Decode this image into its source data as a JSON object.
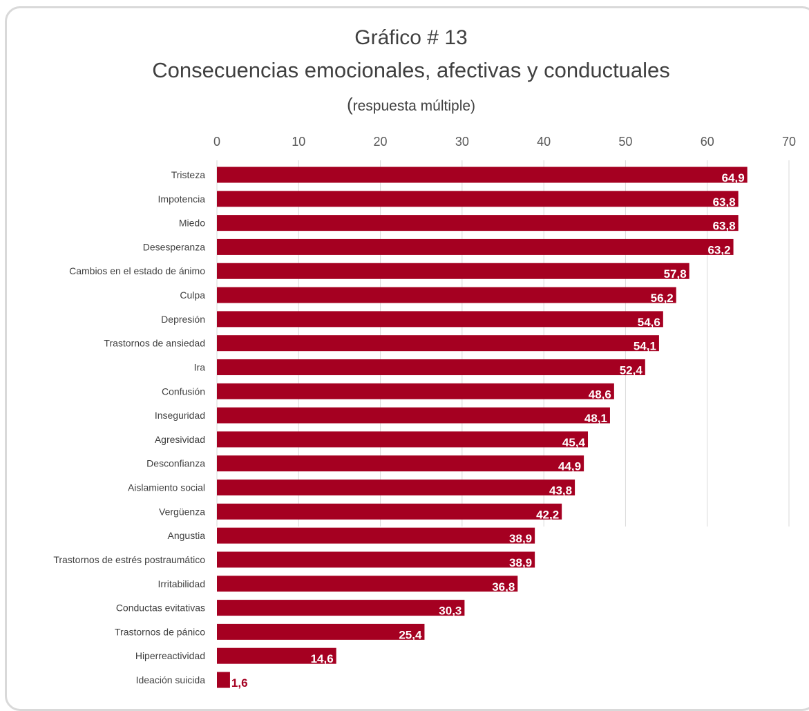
{
  "chart_data": {
    "type": "bar",
    "orientation": "horizontal",
    "title": "Gráfico # 13",
    "subtitle": "Consecuencias emocionales, afectivas y conductuales",
    "subtitle_note_paren": "(",
    "subtitle_note_text": "respuesta múltiple)",
    "xlim": [
      0,
      70
    ],
    "xticks": [
      "0",
      "10",
      "20",
      "30",
      "40",
      "50",
      "60",
      "70"
    ],
    "grid": true,
    "bar_color": "#a50021",
    "label_color_inside": "#ffffff",
    "label_color_outside": "#a50021",
    "categories": [
      "Tristeza",
      "Impotencia",
      "Miedo",
      "Desesperanza",
      "Cambios en el estado de ánimo",
      "Culpa",
      "Depresión",
      "Trastornos de ansiedad",
      "Ira",
      "Confusión",
      "Inseguridad",
      "Agresividad",
      "Desconfianza",
      "Aislamiento social",
      "Vergüenza",
      "Angustia",
      "Trastornos de estrés postraumático",
      "Irritabilidad",
      "Conductas evitativas",
      "Trastornos de pánico",
      "Hiperreactividad",
      "Ideación suicida"
    ],
    "values": [
      64.9,
      63.8,
      63.8,
      63.2,
      57.8,
      56.2,
      54.6,
      54.1,
      52.4,
      48.6,
      48.1,
      45.4,
      44.9,
      43.8,
      42.2,
      38.9,
      38.9,
      36.8,
      30.3,
      25.4,
      14.6,
      1.6
    ],
    "value_labels": [
      "64,9",
      "63,8",
      "63,8",
      "63,2",
      "57,8",
      "56,2",
      "54,6",
      "54,1",
      "52,4",
      "48,6",
      "48,1",
      "45,4",
      "44,9",
      "43,8",
      "42,2",
      "38,9",
      "38,9",
      "36,8",
      "30,3",
      "25,4",
      "14,6",
      "1,6"
    ]
  }
}
